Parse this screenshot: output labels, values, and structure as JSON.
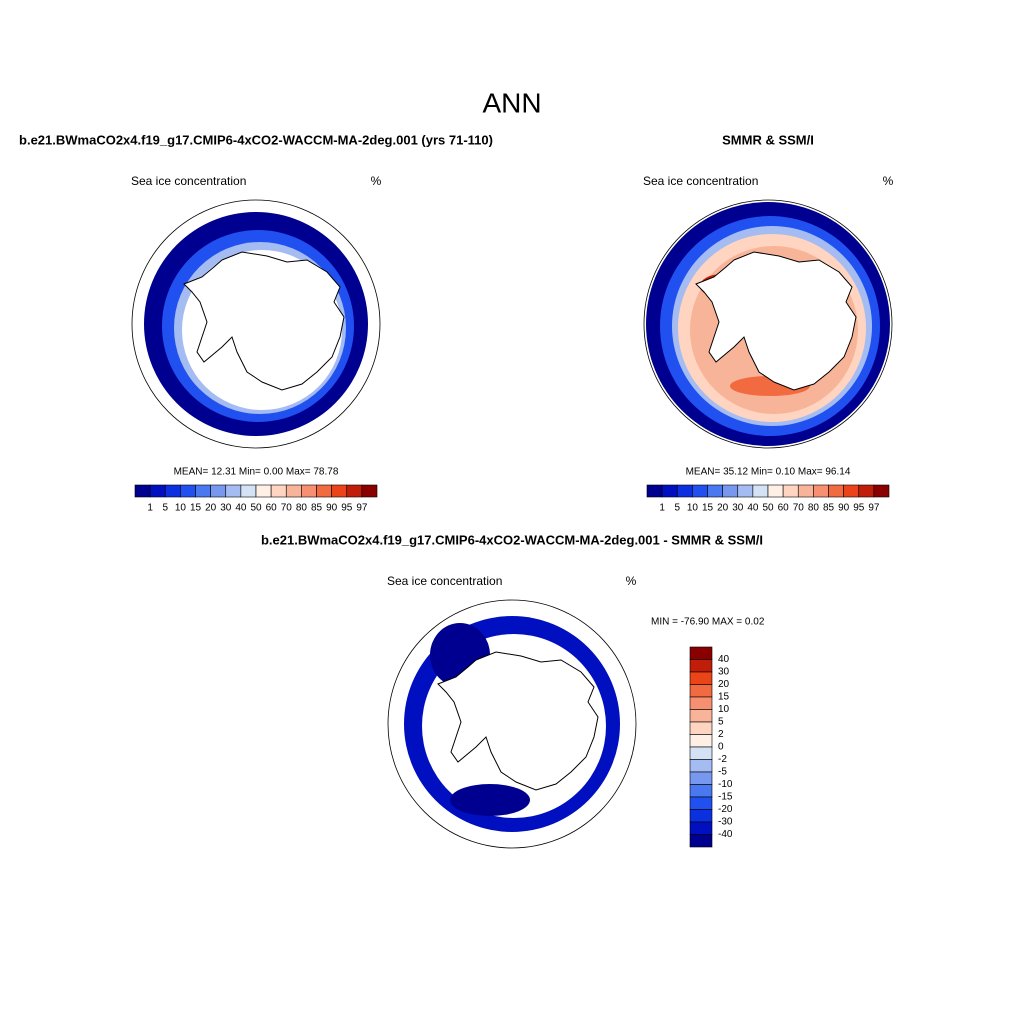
{
  "title": "ANN",
  "panels": [
    {
      "title": "b.e21.BWmaCO2x4.f19_g17.CMIP6-4xCO2-WACCM-MA-2deg.001 (yrs 71-110)",
      "subtitle": "Sea ice concentration",
      "unit": "%",
      "stats": "MEAN=  12.31  Min=   0.00  Max=  78.78"
    },
    {
      "title": "SMMR & SSM/I",
      "subtitle": "Sea ice concentration",
      "unit": "%",
      "stats": "MEAN=  35.12  Min=   0.10  Max=  96.14"
    },
    {
      "title": "b.e21.BWmaCO2x4.f19_g17.CMIP6-4xCO2-WACCM-MA-2deg.001 - SMMR & SSM/I",
      "subtitle": "Sea ice concentration",
      "unit": "%",
      "stats": "MIN = -76.90 MAX =   0.02"
    }
  ],
  "colorbar": {
    "labels": [
      "1",
      "5",
      "10",
      "15",
      "20",
      "30",
      "40",
      "50",
      "60",
      "70",
      "80",
      "85",
      "90",
      "95",
      "97"
    ],
    "colors": [
      "#000090",
      "#0010c0",
      "#0a30e0",
      "#2050f0",
      "#4a78f0",
      "#7898f0",
      "#a4bcf2",
      "#d4e2f6",
      "#fff0e6",
      "#ffd4c0",
      "#f8b498",
      "#f69070",
      "#f26a40",
      "#ea4418",
      "#c01e08",
      "#8a0000"
    ]
  },
  "diff_colorbar": {
    "labels": [
      "40",
      "30",
      "20",
      "15",
      "10",
      "5",
      "2",
      "0",
      "-2",
      "-5",
      "-10",
      "-15",
      "-20",
      "-30",
      "-40"
    ],
    "colors": [
      "#8a0000",
      "#c01e08",
      "#ea4418",
      "#f26a40",
      "#f69070",
      "#f8b498",
      "#ffd4c0",
      "#fff0e6",
      "#d4e2f6",
      "#a4bcf2",
      "#7898f0",
      "#4a78f0",
      "#2050f0",
      "#0a30e0",
      "#0010c0",
      "#000090"
    ]
  }
}
